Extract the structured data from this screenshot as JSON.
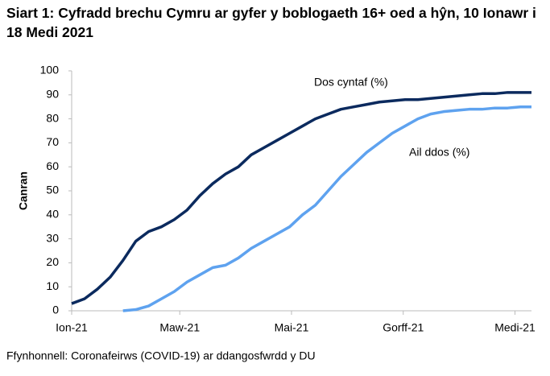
{
  "chart_data": {
    "type": "line",
    "title": "Siart 1: Cyfradd brechu Cymru ar gyfer y boblogaeth 16+ oed a hŷn, 10 Ionawr i 18 Medi 2021",
    "y_label": "Canran",
    "source": "Ffynhonnell: Coronafeirws (COVID-19) ar ddangosfwrdd y DU",
    "x": [
      9,
      16,
      23,
      30,
      37,
      44,
      51,
      58,
      65,
      72,
      79,
      86,
      93,
      100,
      107,
      114,
      121,
      128,
      135,
      142,
      149,
      156,
      163,
      170,
      177,
      184,
      191,
      198,
      205,
      212,
      219,
      226,
      233,
      240,
      247,
      254,
      260
    ],
    "xlim": [
      9,
      260
    ],
    "xticks": [
      {
        "value": 9,
        "label": "Ion-21"
      },
      {
        "value": 68,
        "label": "Maw-21"
      },
      {
        "value": 129,
        "label": "Mai-21"
      },
      {
        "value": 190,
        "label": "Gorff-21"
      },
      {
        "value": 251,
        "label": "Medi-21"
      }
    ],
    "ylim": [
      0,
      100
    ],
    "yticks": [
      0,
      10,
      20,
      30,
      40,
      50,
      60,
      70,
      80,
      90,
      100
    ],
    "grid": false,
    "series": [
      {
        "name": "Dos cyntaf (%)",
        "color": "#0b2a5e",
        "values": [
          3,
          5,
          9,
          14,
          21,
          29,
          33,
          35,
          38,
          42,
          48,
          53,
          57,
          60,
          65,
          68,
          71,
          74,
          77,
          80,
          82,
          84,
          85,
          86,
          87,
          87.5,
          88,
          88,
          88.5,
          89,
          89.5,
          90,
          90.5,
          90.5,
          91,
          91,
          91
        ]
      },
      {
        "name": "Ail ddos (%)",
        "color": "#5ea2ef",
        "values": [
          null,
          null,
          null,
          null,
          0,
          0.5,
          2,
          5,
          8,
          12,
          15,
          18,
          19,
          22,
          26,
          29,
          32,
          35,
          40,
          44,
          50,
          56,
          61,
          66,
          70,
          74,
          77,
          80,
          82,
          83,
          83.5,
          84,
          84,
          84.5,
          84.5,
          85,
          85
        ]
      }
    ]
  }
}
